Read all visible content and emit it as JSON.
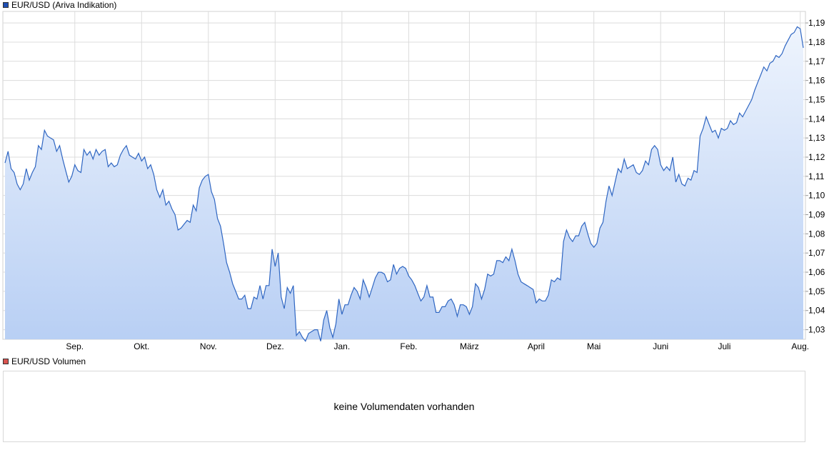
{
  "price_legend": {
    "label": "EUR/USD (Ariva Indikation)",
    "color": "#1f4fb4"
  },
  "volume_legend": {
    "label": "EUR/USD Volumen",
    "color": "#d9534f"
  },
  "volume_panel": {
    "message": "keine Volumendaten vorhanden"
  },
  "colors": {
    "line": "#2f66c2",
    "fill_top": "#eef4fd",
    "fill_bottom": "#b8cff4",
    "grid": "#dcdcdc"
  },
  "chart_data": {
    "type": "area",
    "title": "EUR/USD (Ariva Indikation)",
    "ylim": [
      1.025,
      1.196
    ],
    "y_ticks": [
      "1,03",
      "1,04",
      "1,05",
      "1,06",
      "1,07",
      "1,08",
      "1,09",
      "1,10",
      "1,11",
      "1,12",
      "1,13",
      "1,14",
      "1,15",
      "1,16",
      "1,17",
      "1,18",
      "1,19"
    ],
    "y_tick_values": [
      1.03,
      1.04,
      1.05,
      1.06,
      1.07,
      1.08,
      1.09,
      1.1,
      1.11,
      1.12,
      1.13,
      1.14,
      1.15,
      1.16,
      1.17,
      1.18,
      1.19
    ],
    "x_ticks": [
      "Sep.",
      "Okt.",
      "Nov.",
      "Dez.",
      "Jan.",
      "Feb.",
      "März",
      "April",
      "Mai",
      "Juni",
      "Juli",
      "Aug."
    ],
    "x_tick_positions": [
      23,
      45,
      67,
      89,
      111,
      133,
      153,
      175,
      194,
      216,
      237,
      262
    ],
    "grid": true,
    "x_count": 264,
    "series": [
      {
        "values": [
          [
            0,
            1.117
          ],
          [
            1,
            1.123
          ],
          [
            2,
            1.114
          ],
          [
            3,
            1.112
          ],
          [
            4,
            1.106
          ],
          [
            5,
            1.103
          ],
          [
            6,
            1.106
          ],
          [
            7,
            1.114
          ],
          [
            8,
            1.108
          ],
          [
            9,
            1.112
          ],
          [
            10,
            1.115
          ],
          [
            11,
            1.126
          ],
          [
            12,
            1.124
          ],
          [
            13,
            1.134
          ],
          [
            14,
            1.131
          ],
          [
            15,
            1.13
          ],
          [
            16,
            1.129
          ],
          [
            17,
            1.123
          ],
          [
            18,
            1.126
          ],
          [
            19,
            1.119
          ],
          [
            20,
            1.113
          ],
          [
            21,
            1.107
          ],
          [
            22,
            1.11
          ],
          [
            23,
            1.116
          ],
          [
            24,
            1.113
          ],
          [
            25,
            1.112
          ],
          [
            26,
            1.124
          ],
          [
            27,
            1.121
          ],
          [
            28,
            1.123
          ],
          [
            29,
            1.119
          ],
          [
            30,
            1.124
          ],
          [
            31,
            1.121
          ],
          [
            32,
            1.123
          ],
          [
            33,
            1.124
          ],
          [
            34,
            1.115
          ],
          [
            35,
            1.117
          ],
          [
            36,
            1.115
          ],
          [
            37,
            1.116
          ],
          [
            38,
            1.121
          ],
          [
            39,
            1.124
          ],
          [
            40,
            1.126
          ],
          [
            41,
            1.121
          ],
          [
            42,
            1.12
          ],
          [
            43,
            1.119
          ],
          [
            44,
            1.122
          ],
          [
            45,
            1.118
          ],
          [
            46,
            1.12
          ],
          [
            47,
            1.114
          ],
          [
            48,
            1.116
          ],
          [
            49,
            1.111
          ],
          [
            50,
            1.103
          ],
          [
            51,
            1.099
          ],
          [
            52,
            1.103
          ],
          [
            53,
            1.095
          ],
          [
            54,
            1.097
          ],
          [
            55,
            1.093
          ],
          [
            56,
            1.09
          ],
          [
            57,
            1.082
          ],
          [
            58,
            1.083
          ],
          [
            59,
            1.085
          ],
          [
            60,
            1.087
          ],
          [
            61,
            1.086
          ],
          [
            62,
            1.095
          ],
          [
            63,
            1.092
          ],
          [
            64,
            1.104
          ],
          [
            65,
            1.108
          ],
          [
            66,
            1.11
          ],
          [
            67,
            1.111
          ],
          [
            68,
            1.102
          ],
          [
            69,
            1.098
          ],
          [
            70,
            1.088
          ],
          [
            71,
            1.084
          ],
          [
            72,
            1.075
          ],
          [
            73,
            1.065
          ],
          [
            74,
            1.06
          ],
          [
            75,
            1.054
          ],
          [
            76,
            1.05
          ],
          [
            77,
            1.046
          ],
          [
            78,
            1.046
          ],
          [
            79,
            1.048
          ],
          [
            80,
            1.041
          ],
          [
            81,
            1.041
          ],
          [
            82,
            1.047
          ],
          [
            83,
            1.046
          ],
          [
            84,
            1.053
          ],
          [
            85,
            1.046
          ],
          [
            86,
            1.053
          ],
          [
            87,
            1.053
          ],
          [
            88,
            1.072
          ],
          [
            89,
            1.063
          ],
          [
            90,
            1.07
          ],
          [
            91,
            1.047
          ],
          [
            92,
            1.041
          ],
          [
            93,
            1.052
          ],
          [
            94,
            1.049
          ],
          [
            95,
            1.053
          ],
          [
            96,
            1.027
          ],
          [
            97,
            1.029
          ],
          [
            98,
            1.026
          ],
          [
            99,
            1.024
          ],
          [
            100,
            1.028
          ],
          [
            101,
            1.029
          ],
          [
            102,
            1.03
          ],
          [
            103,
            1.03
          ],
          [
            104,
            1.024
          ],
          [
            105,
            1.035
          ],
          [
            106,
            1.04
          ],
          [
            107,
            1.031
          ],
          [
            108,
            1.026
          ],
          [
            109,
            1.033
          ],
          [
            110,
            1.046
          ],
          [
            111,
            1.038
          ],
          [
            112,
            1.043
          ],
          [
            113,
            1.043
          ],
          [
            114,
            1.048
          ],
          [
            115,
            1.052
          ],
          [
            116,
            1.05
          ],
          [
            117,
            1.046
          ],
          [
            118,
            1.056
          ],
          [
            119,
            1.052
          ],
          [
            120,
            1.047
          ],
          [
            121,
            1.052
          ],
          [
            122,
            1.057
          ],
          [
            123,
            1.06
          ],
          [
            124,
            1.06
          ],
          [
            125,
            1.059
          ],
          [
            126,
            1.055
          ],
          [
            127,
            1.056
          ],
          [
            128,
            1.064
          ],
          [
            129,
            1.059
          ],
          [
            130,
            1.062
          ],
          [
            131,
            1.063
          ],
          [
            132,
            1.062
          ],
          [
            133,
            1.058
          ],
          [
            134,
            1.056
          ],
          [
            135,
            1.053
          ],
          [
            136,
            1.049
          ],
          [
            137,
            1.045
          ],
          [
            138,
            1.047
          ],
          [
            139,
            1.053
          ],
          [
            140,
            1.047
          ],
          [
            141,
            1.047
          ],
          [
            142,
            1.039
          ],
          [
            143,
            1.039
          ],
          [
            144,
            1.042
          ],
          [
            145,
            1.042
          ],
          [
            146,
            1.045
          ],
          [
            147,
            1.046
          ],
          [
            148,
            1.043
          ],
          [
            149,
            1.037
          ],
          [
            150,
            1.043
          ],
          [
            151,
            1.043
          ],
          [
            152,
            1.042
          ],
          [
            153,
            1.038
          ],
          [
            154,
            1.042
          ],
          [
            155,
            1.054
          ],
          [
            156,
            1.052
          ],
          [
            157,
            1.046
          ],
          [
            158,
            1.051
          ],
          [
            159,
            1.059
          ],
          [
            160,
            1.058
          ],
          [
            161,
            1.059
          ],
          [
            162,
            1.066
          ],
          [
            163,
            1.066
          ],
          [
            164,
            1.065
          ],
          [
            165,
            1.068
          ],
          [
            166,
            1.066
          ],
          [
            167,
            1.072
          ],
          [
            168,
            1.066
          ],
          [
            169,
            1.059
          ],
          [
            170,
            1.055
          ],
          [
            171,
            1.054
          ],
          [
            172,
            1.053
          ],
          [
            173,
            1.052
          ],
          [
            174,
            1.051
          ],
          [
            175,
            1.044
          ],
          [
            176,
            1.046
          ],
          [
            177,
            1.045
          ],
          [
            178,
            1.045
          ],
          [
            179,
            1.048
          ],
          [
            180,
            1.056
          ],
          [
            181,
            1.055
          ],
          [
            182,
            1.057
          ],
          [
            183,
            1.056
          ],
          [
            184,
            1.076
          ],
          [
            185,
            1.082
          ],
          [
            186,
            1.078
          ],
          [
            187,
            1.076
          ],
          [
            188,
            1.079
          ],
          [
            189,
            1.079
          ],
          [
            190,
            1.084
          ],
          [
            191,
            1.086
          ],
          [
            192,
            1.08
          ],
          [
            193,
            1.075
          ],
          [
            194,
            1.073
          ],
          [
            195,
            1.075
          ],
          [
            196,
            1.083
          ],
          [
            197,
            1.086
          ],
          [
            198,
            1.097
          ],
          [
            199,
            1.105
          ],
          [
            200,
            1.1
          ],
          [
            201,
            1.107
          ],
          [
            202,
            1.114
          ],
          [
            203,
            1.112
          ],
          [
            204,
            1.119
          ],
          [
            205,
            1.114
          ],
          [
            206,
            1.115
          ],
          [
            207,
            1.116
          ],
          [
            208,
            1.112
          ],
          [
            209,
            1.111
          ],
          [
            210,
            1.113
          ],
          [
            211,
            1.118
          ],
          [
            212,
            1.116
          ],
          [
            213,
            1.124
          ],
          [
            214,
            1.126
          ],
          [
            215,
            1.124
          ],
          [
            216,
            1.116
          ],
          [
            217,
            1.113
          ],
          [
            218,
            1.115
          ],
          [
            219,
            1.113
          ],
          [
            220,
            1.12
          ],
          [
            221,
            1.107
          ],
          [
            222,
            1.111
          ],
          [
            223,
            1.106
          ],
          [
            224,
            1.105
          ],
          [
            225,
            1.109
          ],
          [
            226,
            1.108
          ],
          [
            227,
            1.113
          ],
          [
            228,
            1.112
          ],
          [
            229,
            1.131
          ],
          [
            230,
            1.135
          ],
          [
            231,
            1.141
          ],
          [
            232,
            1.137
          ],
          [
            233,
            1.133
          ],
          [
            234,
            1.134
          ],
          [
            235,
            1.13
          ],
          [
            236,
            1.135
          ],
          [
            237,
            1.134
          ],
          [
            238,
            1.135
          ],
          [
            239,
            1.139
          ],
          [
            240,
            1.137
          ],
          [
            241,
            1.138
          ],
          [
            242,
            1.143
          ],
          [
            243,
            1.141
          ],
          [
            244,
            1.144
          ],
          [
            245,
            1.147
          ],
          [
            246,
            1.15
          ],
          [
            247,
            1.155
          ],
          [
            248,
            1.159
          ],
          [
            249,
            1.163
          ],
          [
            250,
            1.167
          ],
          [
            251,
            1.165
          ],
          [
            252,
            1.169
          ],
          [
            253,
            1.17
          ],
          [
            254,
            1.173
          ],
          [
            255,
            1.172
          ],
          [
            256,
            1.174
          ],
          [
            257,
            1.178
          ],
          [
            258,
            1.181
          ],
          [
            259,
            1.184
          ],
          [
            260,
            1.185
          ],
          [
            261,
            1.188
          ],
          [
            262,
            1.187
          ],
          [
            263,
            1.177
          ]
        ]
      }
    ]
  }
}
